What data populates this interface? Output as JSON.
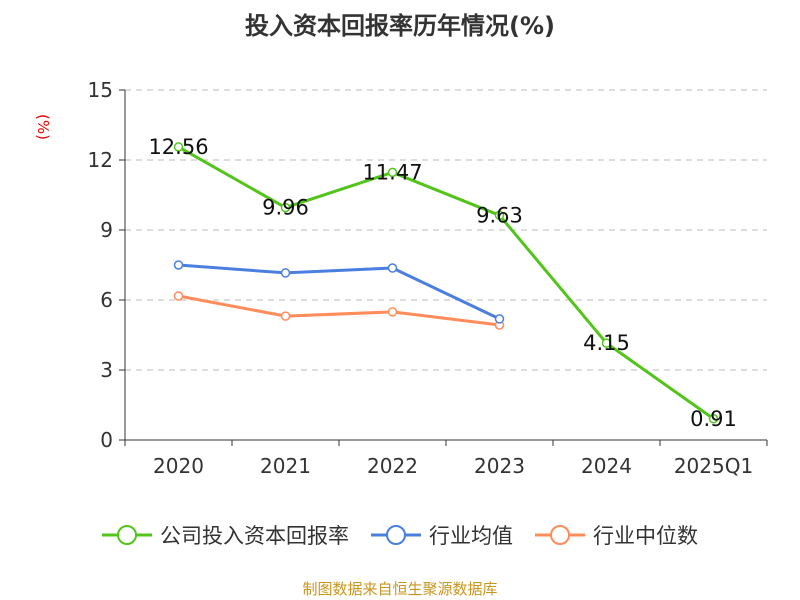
{
  "chart_data": {
    "type": "line",
    "title": "投入资本回报率历年情况(%)",
    "ylabel": "(%)",
    "categories": [
      "2020",
      "2021",
      "2022",
      "2023",
      "2024",
      "2025Q1"
    ],
    "ylim": [
      0,
      15
    ],
    "yticks": [
      0,
      3,
      6,
      9,
      12,
      15
    ],
    "grid": true,
    "legend_position": "bottom",
    "series": [
      {
        "name": "公司投入资本回报率",
        "color": "#52c41a",
        "values": [
          12.56,
          9.96,
          11.47,
          9.63,
          4.15,
          0.91
        ],
        "labels": [
          "12.56",
          "9.96",
          "11.47",
          "9.63",
          "4.15",
          "0.91"
        ]
      },
      {
        "name": "行业均值",
        "color": "#4a7fe0",
        "values": [
          7.5,
          7.16,
          7.37,
          5.19,
          null,
          null
        ]
      },
      {
        "name": "行业中位数",
        "color": "#ff8c5a",
        "values": [
          6.17,
          5.31,
          5.49,
          4.93,
          null,
          null
        ]
      }
    ]
  },
  "source": "制图数据来自恒生聚源数据库"
}
